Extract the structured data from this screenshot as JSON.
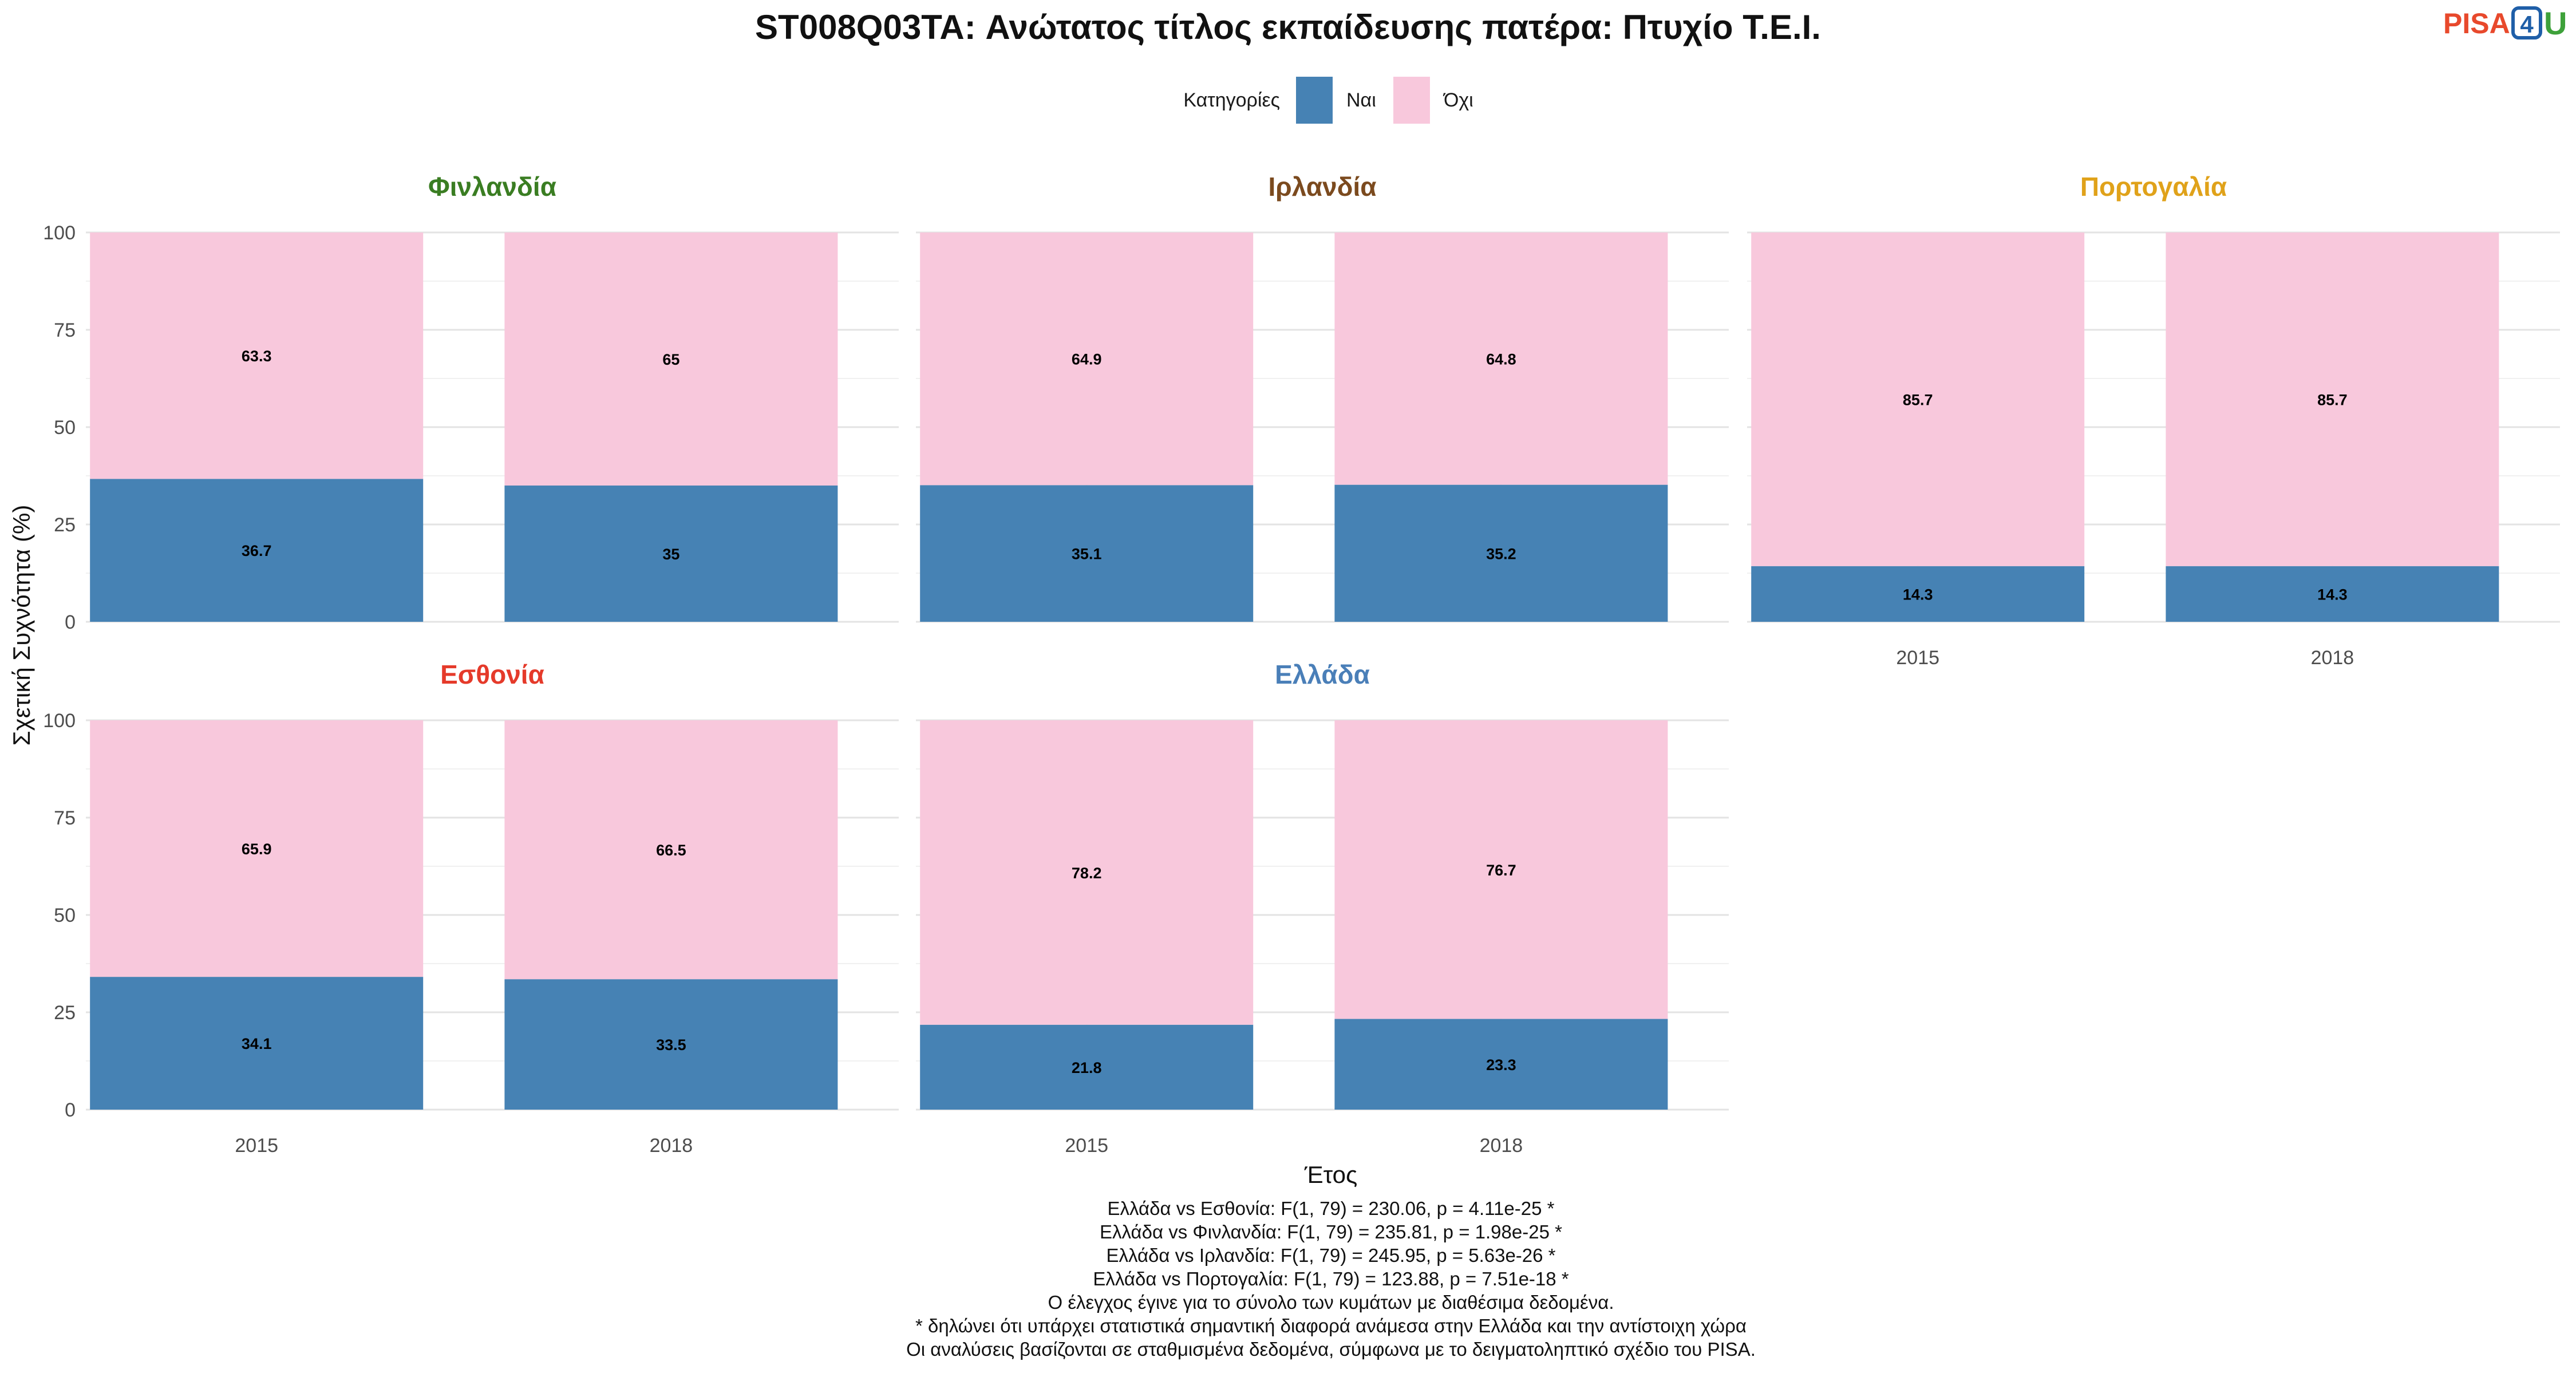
{
  "title": "ST008Q03TA: Ανώτατος τίτλος εκπαίδευσης πατέρα: Πτυχίο Τ.Ε.Ι.",
  "logo": {
    "text_a": "PISA",
    "text_b": "4",
    "text_c": "U",
    "colors": {
      "a": "#e8492c",
      "b": "#1f5fa8",
      "c": "#3ea13a"
    }
  },
  "legend": {
    "title": "Κατηγορίες",
    "items": [
      {
        "label": "Ναι",
        "color": "#4682b4"
      },
      {
        "label": "Όχι",
        "color": "#f8c8dc"
      }
    ]
  },
  "axes": {
    "xlabel": "Έτος",
    "ylabel": "Σχετική Συχνότητα (%)"
  },
  "chart_data": {
    "type": "bar",
    "stacked": true,
    "ylim": [
      0,
      100
    ],
    "yticks": [
      0,
      25,
      50,
      75,
      100
    ],
    "grid": true,
    "legend_position": "top",
    "categories": [
      "2015",
      "2018"
    ],
    "panels": [
      {
        "name": "Φινλανδία",
        "color": "#3a7d22",
        "series": [
          {
            "name": "Ναι",
            "values": [
              36.7,
              35
            ]
          },
          {
            "name": "Όχι",
            "values": [
              63.3,
              65
            ]
          }
        ]
      },
      {
        "name": "Ιρλανδία",
        "color": "#7b4a1e",
        "series": [
          {
            "name": "Ναι",
            "values": [
              35.1,
              35.2
            ]
          },
          {
            "name": "Όχι",
            "values": [
              64.9,
              64.8
            ]
          }
        ]
      },
      {
        "name": "Πορτογαλία",
        "color": "#e0a21a",
        "series": [
          {
            "name": "Ναι",
            "values": [
              14.3,
              14.3
            ]
          },
          {
            "name": "Όχι",
            "values": [
              85.7,
              85.7
            ]
          }
        ]
      },
      {
        "name": "Εσθονία",
        "color": "#e53a2a",
        "series": [
          {
            "name": "Ναι",
            "values": [
              34.1,
              33.5
            ]
          },
          {
            "name": "Όχι",
            "values": [
              65.9,
              66.5
            ]
          }
        ]
      },
      {
        "name": "Ελλάδα",
        "color": "#4a7fb8",
        "series": [
          {
            "name": "Ναι",
            "values": [
              21.8,
              23.3
            ]
          },
          {
            "name": "Όχι",
            "values": [
              78.2,
              76.7
            ]
          }
        ]
      }
    ]
  },
  "footnotes": [
    "Ελλάδα vs Εσθονία: F(1, 79) = 230.06, p = 4.11e-25 *",
    "Ελλάδα vs Φινλανδία: F(1, 79) = 235.81, p = 1.98e-25 *",
    "Ελλάδα vs Ιρλανδία: F(1, 79) = 245.95, p = 5.63e-26 *",
    "Ελλάδα vs Πορτογαλία: F(1, 79) = 123.88, p = 7.51e-18 *",
    "Ο έλεγχος έγινε για το σύνολο των κυμάτων με διαθέσιμα δεδομένα.",
    "* δηλώνει ότι υπάρχει στατιστικά σημαντική διαφορά ανάμεσα στην Ελλάδα και την αντίστοιχη χώρα",
    "Οι αναλύσεις βασίζονται σε σταθμισμένα δεδομένα, σύμφωνα με το δειγματοληπτικό σχέδιο του PISA."
  ]
}
